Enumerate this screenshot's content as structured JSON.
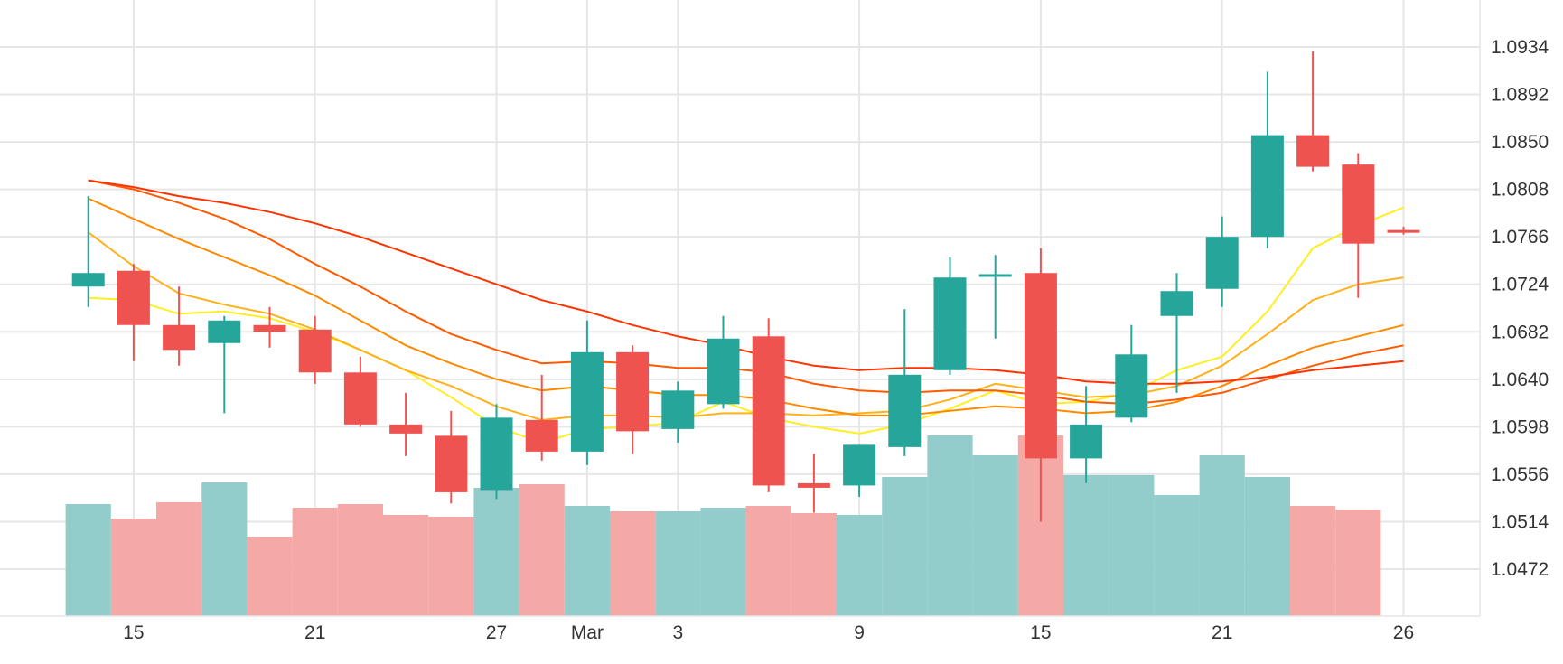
{
  "chart_data": {
    "type": "candlestick",
    "price_axis": {
      "position": "right",
      "ticks": [
        "1.0472",
        "1.0514",
        "1.0556",
        "1.0598",
        "1.0640",
        "1.0682",
        "1.0724",
        "1.0766",
        "1.0808",
        "1.0850",
        "1.0892",
        "1.0934"
      ]
    },
    "x_axis": {
      "ticks": [
        {
          "label": "15",
          "index": 1.0
        },
        {
          "label": "21",
          "index": 5.0
        },
        {
          "label": "27",
          "index": 9.0
        },
        {
          "label": "Mar",
          "index": 11.0
        },
        {
          "label": "3",
          "index": 13.0
        },
        {
          "label": "9",
          "index": 17.0
        },
        {
          "label": "15",
          "index": 21.0
        },
        {
          "label": "21",
          "index": 25.0
        },
        {
          "label": "26",
          "index": 29.0
        }
      ]
    },
    "grid": true,
    "colors": {
      "up": "#26a69a",
      "down": "#ef5350",
      "volume_up": "#92cdcc",
      "volume_down": "#f4a9a6",
      "ma_yellow": "#ffee22",
      "ma_light_orange": "#ffb11a",
      "ma_orange": "#ff8a00",
      "ma_dark_orange": "#ff5a00",
      "ma_red_orange": "#ff3300"
    },
    "candles": [
      {
        "open": 1.0722,
        "high": 1.0802,
        "low": 1.0704,
        "close": 1.0734,
        "volume": 0.62
      },
      {
        "open": 1.0736,
        "high": 1.0742,
        "low": 1.0656,
        "close": 1.0688,
        "volume": 0.54
      },
      {
        "open": 1.0688,
        "high": 1.0722,
        "low": 1.0652,
        "close": 1.0666,
        "volume": 0.63
      },
      {
        "open": 1.0672,
        "high": 1.0696,
        "low": 1.061,
        "close": 1.0692,
        "volume": 0.74
      },
      {
        "open": 1.0688,
        "high": 1.0704,
        "low": 1.0668,
        "close": 1.0682,
        "volume": 0.44
      },
      {
        "open": 1.0684,
        "high": 1.0696,
        "low": 1.0636,
        "close": 1.0646,
        "volume": 0.6
      },
      {
        "open": 1.0646,
        "high": 1.066,
        "low": 1.0598,
        "close": 1.06,
        "volume": 0.62
      },
      {
        "open": 1.06,
        "high": 1.0628,
        "low": 1.0572,
        "close": 1.0592,
        "volume": 0.56
      },
      {
        "open": 1.059,
        "high": 1.0612,
        "low": 1.053,
        "close": 1.054,
        "volume": 0.55
      },
      {
        "open": 1.0542,
        "high": 1.0618,
        "low": 1.0534,
        "close": 1.0606,
        "volume": 0.71
      },
      {
        "open": 1.0604,
        "high": 1.0644,
        "low": 1.0568,
        "close": 1.0576,
        "volume": 0.73
      },
      {
        "open": 1.0576,
        "high": 1.0692,
        "low": 1.0564,
        "close": 1.0664,
        "volume": 0.61
      },
      {
        "open": 1.0664,
        "high": 1.067,
        "low": 1.0574,
        "close": 1.0594,
        "volume": 0.58
      },
      {
        "open": 1.0596,
        "high": 1.0638,
        "low": 1.0584,
        "close": 1.063,
        "volume": 0.58
      },
      {
        "open": 1.0618,
        "high": 1.0696,
        "low": 1.0614,
        "close": 1.0676,
        "volume": 0.6
      },
      {
        "open": 1.0678,
        "high": 1.0694,
        "low": 1.054,
        "close": 1.0546,
        "volume": 0.61
      },
      {
        "open": 1.0548,
        "high": 1.0574,
        "low": 1.0522,
        "close": 1.0544,
        "volume": 0.57
      },
      {
        "open": 1.0546,
        "high": 1.0582,
        "low": 1.0536,
        "close": 1.0582,
        "volume": 0.56
      },
      {
        "open": 1.058,
        "high": 1.0702,
        "low": 1.0572,
        "close": 1.0644,
        "volume": 0.77
      },
      {
        "open": 1.0648,
        "high": 1.0748,
        "low": 1.0644,
        "close": 1.073,
        "volume": 1.0
      },
      {
        "open": 1.0733,
        "high": 1.075,
        "low": 1.0676,
        "close": 1.0733,
        "volume": 0.89
      },
      {
        "open": 1.0734,
        "high": 1.0756,
        "low": 1.0514,
        "close": 1.057,
        "volume": 1.0
      },
      {
        "open": 1.057,
        "high": 1.0634,
        "low": 1.0548,
        "close": 1.06,
        "volume": 0.78
      },
      {
        "open": 1.0606,
        "high": 1.0688,
        "low": 1.0602,
        "close": 1.0662,
        "volume": 0.78
      },
      {
        "open": 1.0696,
        "high": 1.0734,
        "low": 1.0628,
        "close": 1.0718,
        "volume": 0.67
      },
      {
        "open": 1.072,
        "high": 1.0784,
        "low": 1.0704,
        "close": 1.0766,
        "volume": 0.89
      },
      {
        "open": 1.0766,
        "high": 1.0912,
        "low": 1.0756,
        "close": 1.0856,
        "volume": 0.77
      },
      {
        "open": 1.0856,
        "high": 1.093,
        "low": 1.0824,
        "close": 1.0828,
        "volume": 0.61
      },
      {
        "open": 1.083,
        "high": 1.084,
        "low": 1.0712,
        "close": 1.076,
        "volume": 0.59
      },
      {
        "open": 1.0772,
        "high": 1.0775,
        "low": 1.0768,
        "close": 1.077,
        "volume": 0.0
      }
    ],
    "moving_averages": [
      {
        "color": "ma_yellow",
        "values": [
          1.0712,
          1.071,
          1.0698,
          1.07,
          1.0694,
          1.0682,
          1.0666,
          1.0648,
          1.0624,
          1.0598,
          1.0584,
          1.0596,
          1.0598,
          1.0602,
          1.062,
          1.0606,
          1.0598,
          1.0592,
          1.06,
          1.0614,
          1.063,
          1.0618,
          1.062,
          1.0628,
          1.0648,
          1.066,
          1.07,
          1.0756,
          1.0776,
          1.0792
        ]
      },
      {
        "color": "ma_light_orange",
        "values": [
          1.077,
          1.074,
          1.0716,
          1.0706,
          1.0698,
          1.0684,
          1.0666,
          1.0648,
          1.0634,
          1.0616,
          1.0604,
          1.0608,
          1.0608,
          1.0606,
          1.061,
          1.061,
          1.0608,
          1.061,
          1.0612,
          1.0622,
          1.0636,
          1.063,
          1.0624,
          1.0626,
          1.0634,
          1.0652,
          1.068,
          1.071,
          1.0724,
          1.073
        ]
      },
      {
        "color": "ma_orange",
        "values": [
          1.08,
          1.0782,
          1.0764,
          1.0748,
          1.0732,
          1.0714,
          1.0692,
          1.067,
          1.0654,
          1.064,
          1.063,
          1.0634,
          1.063,
          1.0626,
          1.0626,
          1.0622,
          1.0614,
          1.0608,
          1.0608,
          1.0612,
          1.0616,
          1.0614,
          1.061,
          1.0612,
          1.062,
          1.0634,
          1.0652,
          1.0668,
          1.0678,
          1.0688
        ]
      },
      {
        "color": "ma_dark_orange",
        "values": [
          1.0816,
          1.0808,
          1.0796,
          1.0782,
          1.0764,
          1.0742,
          1.0722,
          1.07,
          1.068,
          1.0666,
          1.0654,
          1.0656,
          1.0654,
          1.065,
          1.065,
          1.0646,
          1.0636,
          1.063,
          1.0628,
          1.063,
          1.063,
          1.0626,
          1.062,
          1.0618,
          1.0622,
          1.0628,
          1.064,
          1.0652,
          1.0662,
          1.067
        ]
      },
      {
        "color": "ma_red_orange",
        "values": [
          1.0816,
          1.081,
          1.0802,
          1.0796,
          1.0788,
          1.0778,
          1.0766,
          1.0752,
          1.0738,
          1.0724,
          1.071,
          1.07,
          1.0688,
          1.0678,
          1.067,
          1.066,
          1.0652,
          1.0648,
          1.065,
          1.065,
          1.0648,
          1.0644,
          1.0638,
          1.0636,
          1.0636,
          1.0638,
          1.0642,
          1.0648,
          1.0652,
          1.0656
        ]
      }
    ]
  }
}
